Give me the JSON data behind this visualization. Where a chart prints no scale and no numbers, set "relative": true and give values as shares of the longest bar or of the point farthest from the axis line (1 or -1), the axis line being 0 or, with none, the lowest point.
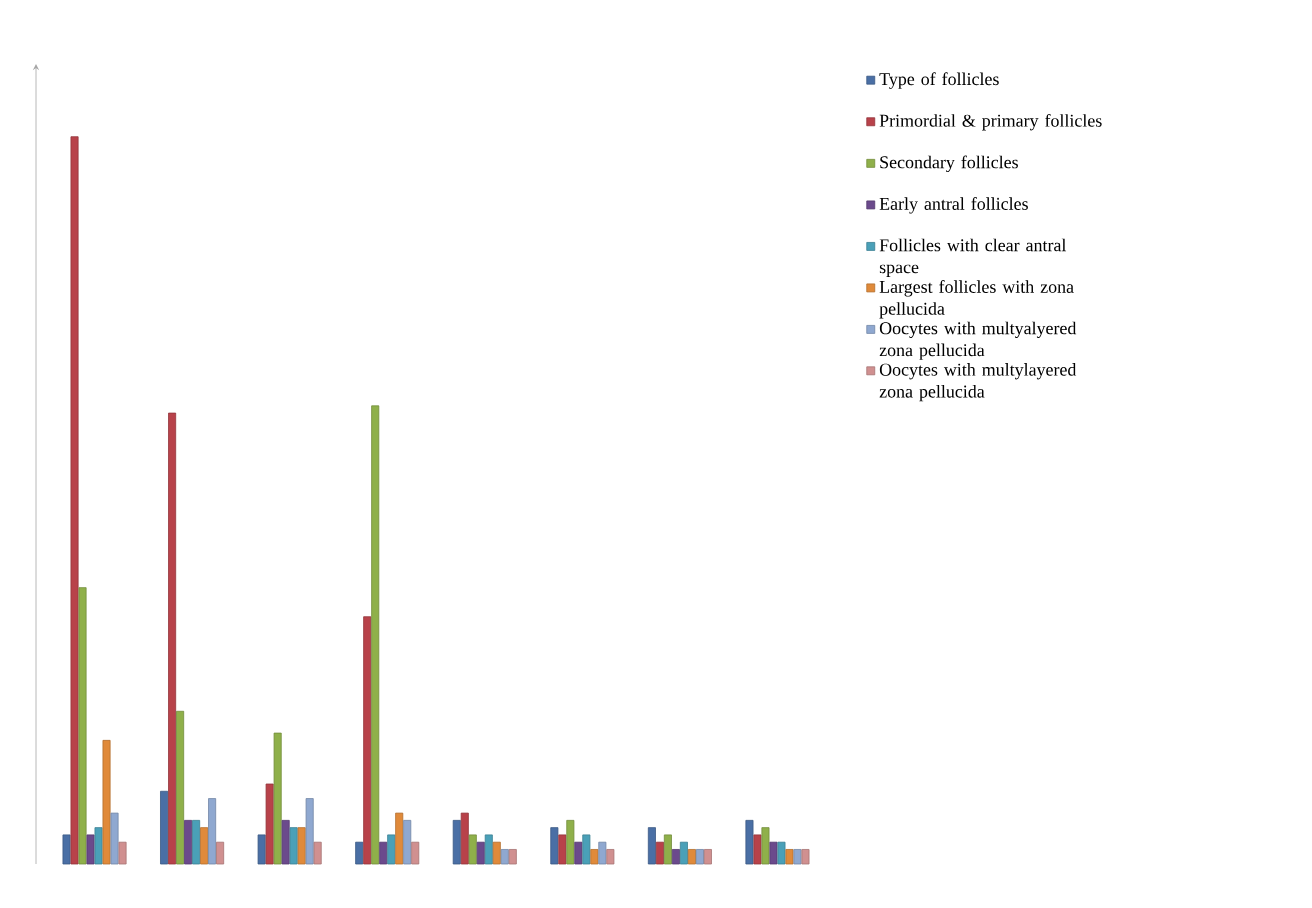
{
  "chart_data": {
    "type": "bar",
    "relative": true,
    "legend": "right",
    "categories": [
      null,
      null,
      null,
      null,
      null,
      null,
      null,
      null
    ],
    "series": [
      {
        "name": "Type of follicles",
        "color": "#4a6fa5",
        "values": [
          0.04,
          0.1,
          0.04,
          0.03,
          0.06,
          0.05,
          0.05,
          0.06
        ]
      },
      {
        "name": "Primordial & primary follicles",
        "color": "#b8424a",
        "values": [
          1.0,
          0.62,
          0.11,
          0.34,
          0.07,
          0.04,
          0.03,
          0.04
        ]
      },
      {
        "name": "Secondary follicles",
        "color": "#8fb04a",
        "values": [
          0.38,
          0.21,
          0.18,
          0.63,
          0.04,
          0.06,
          0.04,
          0.05
        ]
      },
      {
        "name": "Early antral follicles",
        "color": "#6b4a8c",
        "values": [
          0.04,
          0.06,
          0.06,
          0.03,
          0.03,
          0.03,
          0.02,
          0.03
        ]
      },
      {
        "name": "Follicles with clear antral space",
        "color": "#4aa0b8",
        "values": [
          0.05,
          0.06,
          0.05,
          0.04,
          0.04,
          0.04,
          0.03,
          0.03
        ]
      },
      {
        "name": "Largest follicles with zona pellucida",
        "color": "#e08a3a",
        "values": [
          0.17,
          0.05,
          0.05,
          0.07,
          0.03,
          0.02,
          0.02,
          0.02
        ]
      },
      {
        "name": "Oocytes with multyalyered zona pellucida",
        "color": "#8fa8d0",
        "values": [
          0.07,
          0.09,
          0.09,
          0.06,
          0.02,
          0.03,
          0.02,
          0.02
        ]
      },
      {
        "name": "Oocytes with multylayered zona pellucida",
        "color": "#d09090",
        "values": [
          0.03,
          0.03,
          0.03,
          0.03,
          0.02,
          0.02,
          0.02,
          0.02
        ]
      }
    ]
  }
}
